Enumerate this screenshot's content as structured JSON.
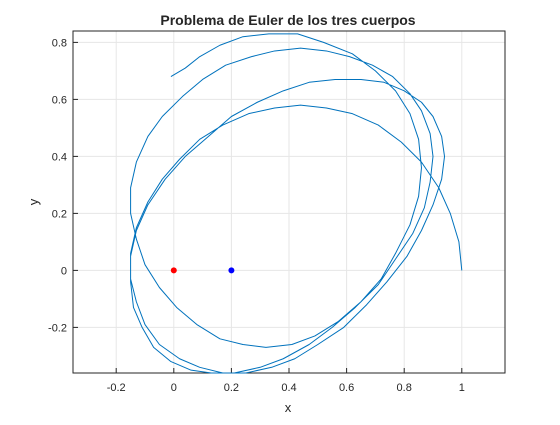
{
  "chart_data": {
    "type": "line",
    "title": "Problema de Euler de los tres cuerpos",
    "xlabel": "x",
    "ylabel": "y",
    "xlim": [
      -0.35,
      1.15
    ],
    "ylim": [
      -0.36,
      0.84
    ],
    "xticks": [
      -0.2,
      0,
      0.2,
      0.4,
      0.6,
      0.8,
      1
    ],
    "xtick_labels": [
      "-0.2",
      "0",
      "0.2",
      "0.4",
      "0.6",
      "0.8",
      "1"
    ],
    "yticks": [
      -0.2,
      0,
      0.2,
      0.4,
      0.6,
      0.8
    ],
    "ytick_labels": [
      "-0.2",
      "0",
      "0.2",
      "0.4",
      "0.6",
      "0.8"
    ],
    "grid": true,
    "trajectory_color": "#0072BD",
    "trajectory": {
      "x": [
        1.0,
        0.99,
        0.96,
        0.92,
        0.86,
        0.79,
        0.71,
        0.62,
        0.53,
        0.44,
        0.35,
        0.26,
        0.17,
        0.09,
        0.02,
        -0.04,
        -0.09,
        -0.13,
        -0.15,
        -0.15,
        -0.13,
        -0.1,
        -0.05,
        0.02,
        0.09,
        0.17,
        0.25,
        0.34,
        0.42,
        0.5,
        0.59,
        0.67,
        0.74,
        0.81,
        0.86,
        0.9,
        0.93,
        0.94,
        0.93,
        0.9,
        0.86,
        0.8,
        0.73,
        0.65,
        0.56,
        0.47,
        0.38,
        0.29,
        0.2,
        0.12,
        0.04,
        -0.03,
        -0.09,
        -0.13,
        -0.15,
        -0.15,
        -0.14,
        -0.11,
        -0.07,
        -0.01,
        0.06,
        0.13,
        0.21,
        0.3,
        0.38,
        0.47,
        0.55,
        0.63,
        0.71,
        0.77,
        0.83,
        0.87,
        0.89,
        0.9,
        0.89,
        0.86,
        0.82,
        0.76,
        0.69,
        0.61,
        0.53,
        0.44,
        0.35,
        0.27,
        0.18,
        0.1,
        0.03,
        -0.04,
        -0.09,
        -0.13,
        -0.15,
        -0.15,
        -0.13,
        -0.1,
        -0.05,
        0.01,
        0.08,
        0.16,
        0.24,
        0.32,
        0.41,
        0.49,
        0.57,
        0.65,
        0.72,
        0.77,
        0.82,
        0.85,
        0.86,
        0.85,
        0.82,
        0.77,
        0.7,
        0.62,
        0.52,
        0.43,
        0.33,
        0.24,
        0.16,
        0.09,
        0.04,
        -0.01
      ],
      "y": [
        0.0,
        0.1,
        0.2,
        0.29,
        0.38,
        0.45,
        0.51,
        0.55,
        0.57,
        0.58,
        0.57,
        0.55,
        0.51,
        0.46,
        0.39,
        0.32,
        0.24,
        0.15,
        0.06,
        -0.03,
        -0.11,
        -0.19,
        -0.26,
        -0.31,
        -0.34,
        -0.36,
        -0.36,
        -0.34,
        -0.31,
        -0.26,
        -0.2,
        -0.12,
        -0.04,
        0.05,
        0.14,
        0.23,
        0.32,
        0.4,
        0.47,
        0.54,
        0.59,
        0.63,
        0.66,
        0.67,
        0.67,
        0.66,
        0.63,
        0.59,
        0.54,
        0.47,
        0.4,
        0.32,
        0.23,
        0.14,
        0.05,
        -0.04,
        -0.13,
        -0.2,
        -0.27,
        -0.32,
        -0.35,
        -0.36,
        -0.36,
        -0.34,
        -0.31,
        -0.26,
        -0.2,
        -0.13,
        -0.05,
        0.04,
        0.13,
        0.22,
        0.31,
        0.4,
        0.48,
        0.56,
        0.62,
        0.68,
        0.72,
        0.75,
        0.77,
        0.78,
        0.77,
        0.75,
        0.72,
        0.67,
        0.61,
        0.54,
        0.47,
        0.38,
        0.29,
        0.2,
        0.11,
        0.02,
        -0.06,
        -0.13,
        -0.19,
        -0.24,
        -0.26,
        -0.27,
        -0.26,
        -0.23,
        -0.18,
        -0.11,
        -0.03,
        0.06,
        0.16,
        0.26,
        0.36,
        0.46,
        0.55,
        0.63,
        0.7,
        0.76,
        0.8,
        0.83,
        0.83,
        0.82,
        0.79,
        0.75,
        0.71,
        0.68
      ]
    },
    "bodies": [
      {
        "x": 0,
        "y": 0,
        "color": "#FF0000"
      },
      {
        "x": 0.2,
        "y": 0,
        "color": "#0000FF"
      }
    ]
  }
}
